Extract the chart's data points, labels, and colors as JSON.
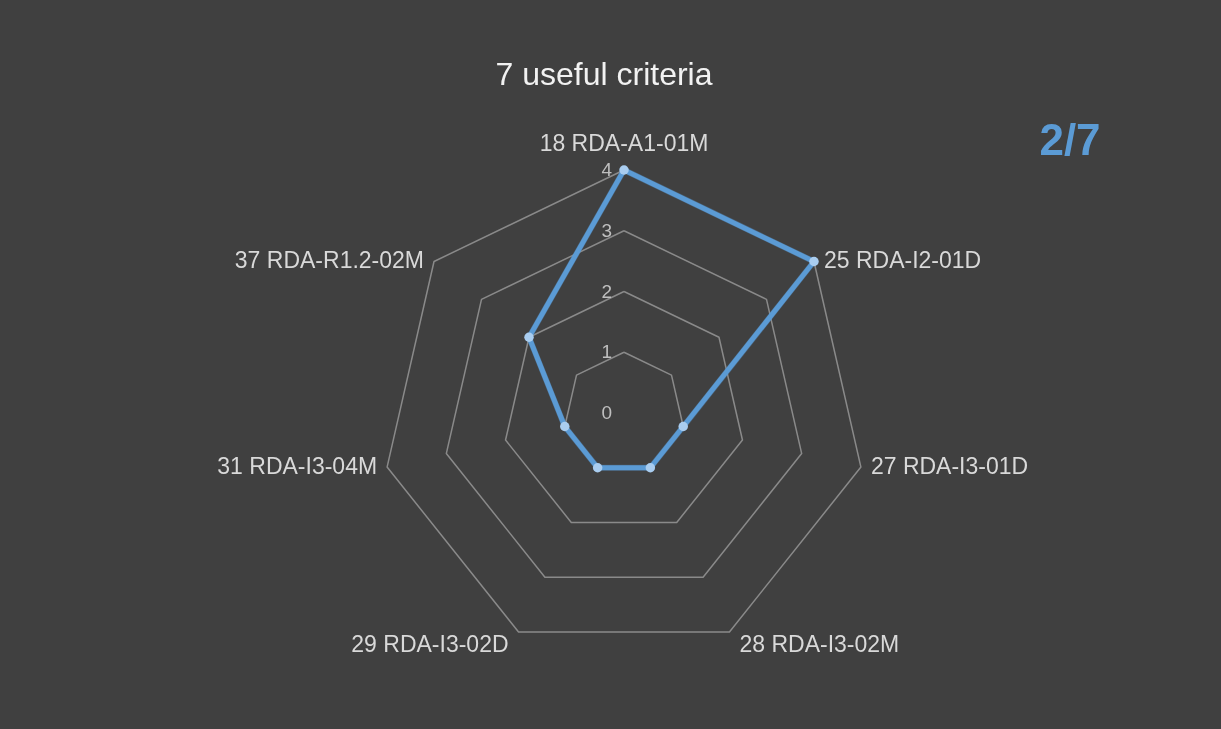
{
  "chart_data": {
    "type": "radar",
    "title": "7 useful criteria",
    "annotations": [
      "2/7"
    ],
    "categories": [
      "18 RDA-A1-01M",
      "25 RDA-I2-01D",
      "27 RDA-I3-01D",
      "28 RDA-I3-02M",
      "29 RDA-I3-02D",
      "31 RDA-I3-04M",
      "37 RDA-R1.2-02M"
    ],
    "series": [
      {
        "color": "#5b9bd5",
        "values": [
          4,
          4,
          1,
          1,
          1,
          1,
          2
        ]
      }
    ],
    "ylim": [
      0,
      4
    ],
    "yticks": [
      0,
      1,
      2,
      3,
      4
    ],
    "grid": true,
    "marker": "circle"
  }
}
